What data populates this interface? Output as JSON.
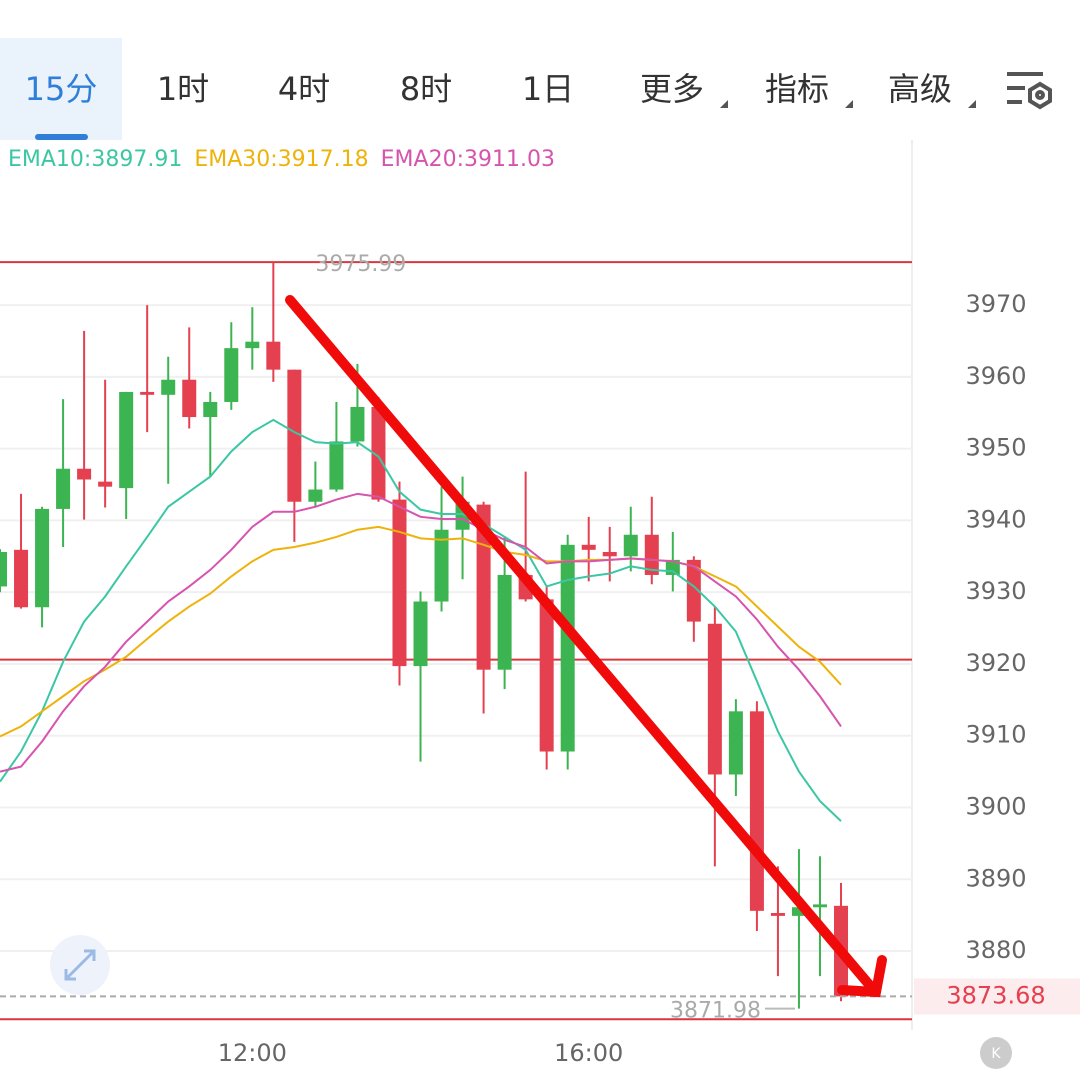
{
  "tabs": [
    "15分",
    "1时",
    "4时",
    "8时",
    "1日",
    "更多",
    "指标",
    "高级"
  ],
  "chart_data": {
    "type": "candlestick",
    "categories": [
      null,
      null,
      null,
      null,
      null,
      null,
      null,
      null,
      null,
      null,
      null,
      null,
      "12:00",
      null,
      null,
      null,
      null,
      null,
      null,
      null,
      null,
      null,
      null,
      null,
      null,
      null,
      null,
      null,
      "16:00",
      null,
      null,
      null,
      null,
      null,
      null,
      null,
      null,
      null,
      null,
      null,
      null
    ],
    "open": [
      3930.8,
      3935.9,
      3927.9,
      3941.6,
      3947.2,
      3945.4,
      3944.5,
      3957.9,
      3957.5,
      3959.6,
      3954.4,
      3956.5,
      3964.0,
      3964.9,
      3961.0,
      3942.6,
      3944.3,
      3951.0,
      3955.8,
      3942.9,
      3919.7,
      3928.7,
      3938.7,
      3942.2,
      3919.2,
      3932.4,
      3929.0,
      3907.8,
      3936.6,
      3935.6,
      3935.0,
      3938.0,
      3932.4,
      3934.5,
      3925.6,
      3904.6,
      3913.4,
      3885.3,
      3884.9,
      3886.1,
      3886.3
    ],
    "high": [
      3936,
      3943.7,
      3941.9,
      3956.9,
      3966.4,
      3959.6,
      3957.9,
      3970,
      3962.8,
      3966.9,
      3957.9,
      3967.6,
      3969.7,
      3975.99,
      3961.0,
      3948.2,
      3956.5,
      3961.8,
      3957.2,
      3945.4,
      3930.1,
      3944.7,
      3946.1,
      3942.6,
      3937.7,
      3946.8,
      3930.8,
      3938.0,
      3940.5,
      3939.1,
      3941.9,
      3943.3,
      3938.4,
      3935.0,
      3928.0,
      3915.1,
      3914.8,
      3891.8,
      3894.2,
      3893.2,
      3889.5
    ],
    "low": [
      3930,
      3927.7,
      3925.1,
      3936.3,
      3940.1,
      3941.8,
      3940.2,
      3952.3,
      3945.1,
      3952.8,
      3946.1,
      3955.4,
      3961.0,
      3959.3,
      3937.0,
      3941.9,
      3944.0,
      3950.3,
      3942.6,
      3917.0,
      3906.4,
      3927.3,
      3931.8,
      3913.1,
      3916.5,
      3928.7,
      3905.3,
      3905.3,
      3931.5,
      3931.5,
      3932.9,
      3931.1,
      3930.1,
      3923.1,
      3891.8,
      3901.6,
      3882.8,
      3876.5,
      3871.98,
      3876.5,
      3873.0
    ],
    "close": [
      3935.6,
      3927.9,
      3941.6,
      3947.2,
      3945.7,
      3944.7,
      3957.9,
      3957.5,
      3959.6,
      3954.4,
      3956.5,
      3964.0,
      3964.9,
      3961.0,
      3942.6,
      3944.3,
      3951.0,
      3955.8,
      3942.9,
      3919.7,
      3928.7,
      3938.7,
      3942.6,
      3919.2,
      3932.4,
      3929.0,
      3907.8,
      3936.6,
      3935.9,
      3935.0,
      3938.0,
      3932.4,
      3934.5,
      3925.9,
      3904.6,
      3913.4,
      3885.6,
      3884.9,
      3886.1,
      3886.5,
      3873.68
    ],
    "up_color": "#3cb451",
    "down_color": "#e5404f",
    "series": [
      {
        "name": "EMA10:3897.91",
        "color": "#3cc7a4",
        "values": [
          3903.6,
          3907.8,
          3913.4,
          3920.3,
          3925.9,
          3929.4,
          3933.6,
          3937.7,
          3941.9,
          3944.0,
          3946.1,
          3949.6,
          3952.3,
          3954.0,
          3952.3,
          3950.9,
          3950.7,
          3950.9,
          3948.9,
          3944.0,
          3941.5,
          3940.9,
          3940.9,
          3939.5,
          3937.7,
          3935.9,
          3930.8,
          3931.7,
          3932.2,
          3932.6,
          3933.6,
          3933.1,
          3932.9,
          3930.8,
          3928.0,
          3924.5,
          3917.6,
          3910.6,
          3905.0,
          3900.9,
          3898.1
        ]
      },
      {
        "name": "EMA30:3917.18",
        "color": "#eeb30a",
        "values": [
          3909.9,
          3911.3,
          3913.4,
          3915.5,
          3917.6,
          3919.2,
          3921.0,
          3923.5,
          3925.9,
          3928.0,
          3929.8,
          3932.2,
          3934.3,
          3935.9,
          3936.3,
          3936.9,
          3937.7,
          3938.7,
          3939.1,
          3938.4,
          3937.5,
          3937.3,
          3937.5,
          3936.6,
          3935.6,
          3935.2,
          3934.3,
          3934.3,
          3934.5,
          3934.5,
          3934.7,
          3934.5,
          3934.3,
          3933.6,
          3932.2,
          3930.8,
          3928.0,
          3925.2,
          3922.4,
          3920.3,
          3917.1
        ]
      },
      {
        "name": "EMA20:3911.03",
        "color": "#d653ae",
        "values": [
          3905.0,
          3905.7,
          3909.2,
          3913.4,
          3916.9,
          3919.6,
          3923.1,
          3925.9,
          3928.7,
          3930.8,
          3933.1,
          3935.9,
          3939.1,
          3941.2,
          3941.2,
          3941.9,
          3942.9,
          3943.7,
          3943.3,
          3941.9,
          3940.5,
          3940.2,
          3940.2,
          3938.7,
          3937.3,
          3936.3,
          3934.0,
          3934.3,
          3934.3,
          3934.5,
          3934.7,
          3934.5,
          3934.3,
          3933.6,
          3931.5,
          3929.4,
          3926.2,
          3922.4,
          3919.2,
          3915.5,
          3911.3
        ]
      }
    ],
    "hlines": [
      3975.99,
      3920.6,
      3870.5
    ],
    "hline_color": "#d9363e",
    "ylim": [
      3869,
      3993
    ],
    "yticks": [
      3880,
      3890,
      3900,
      3910,
      3920,
      3930,
      3940,
      3950,
      3960,
      3970
    ],
    "grid": true
  }
}
